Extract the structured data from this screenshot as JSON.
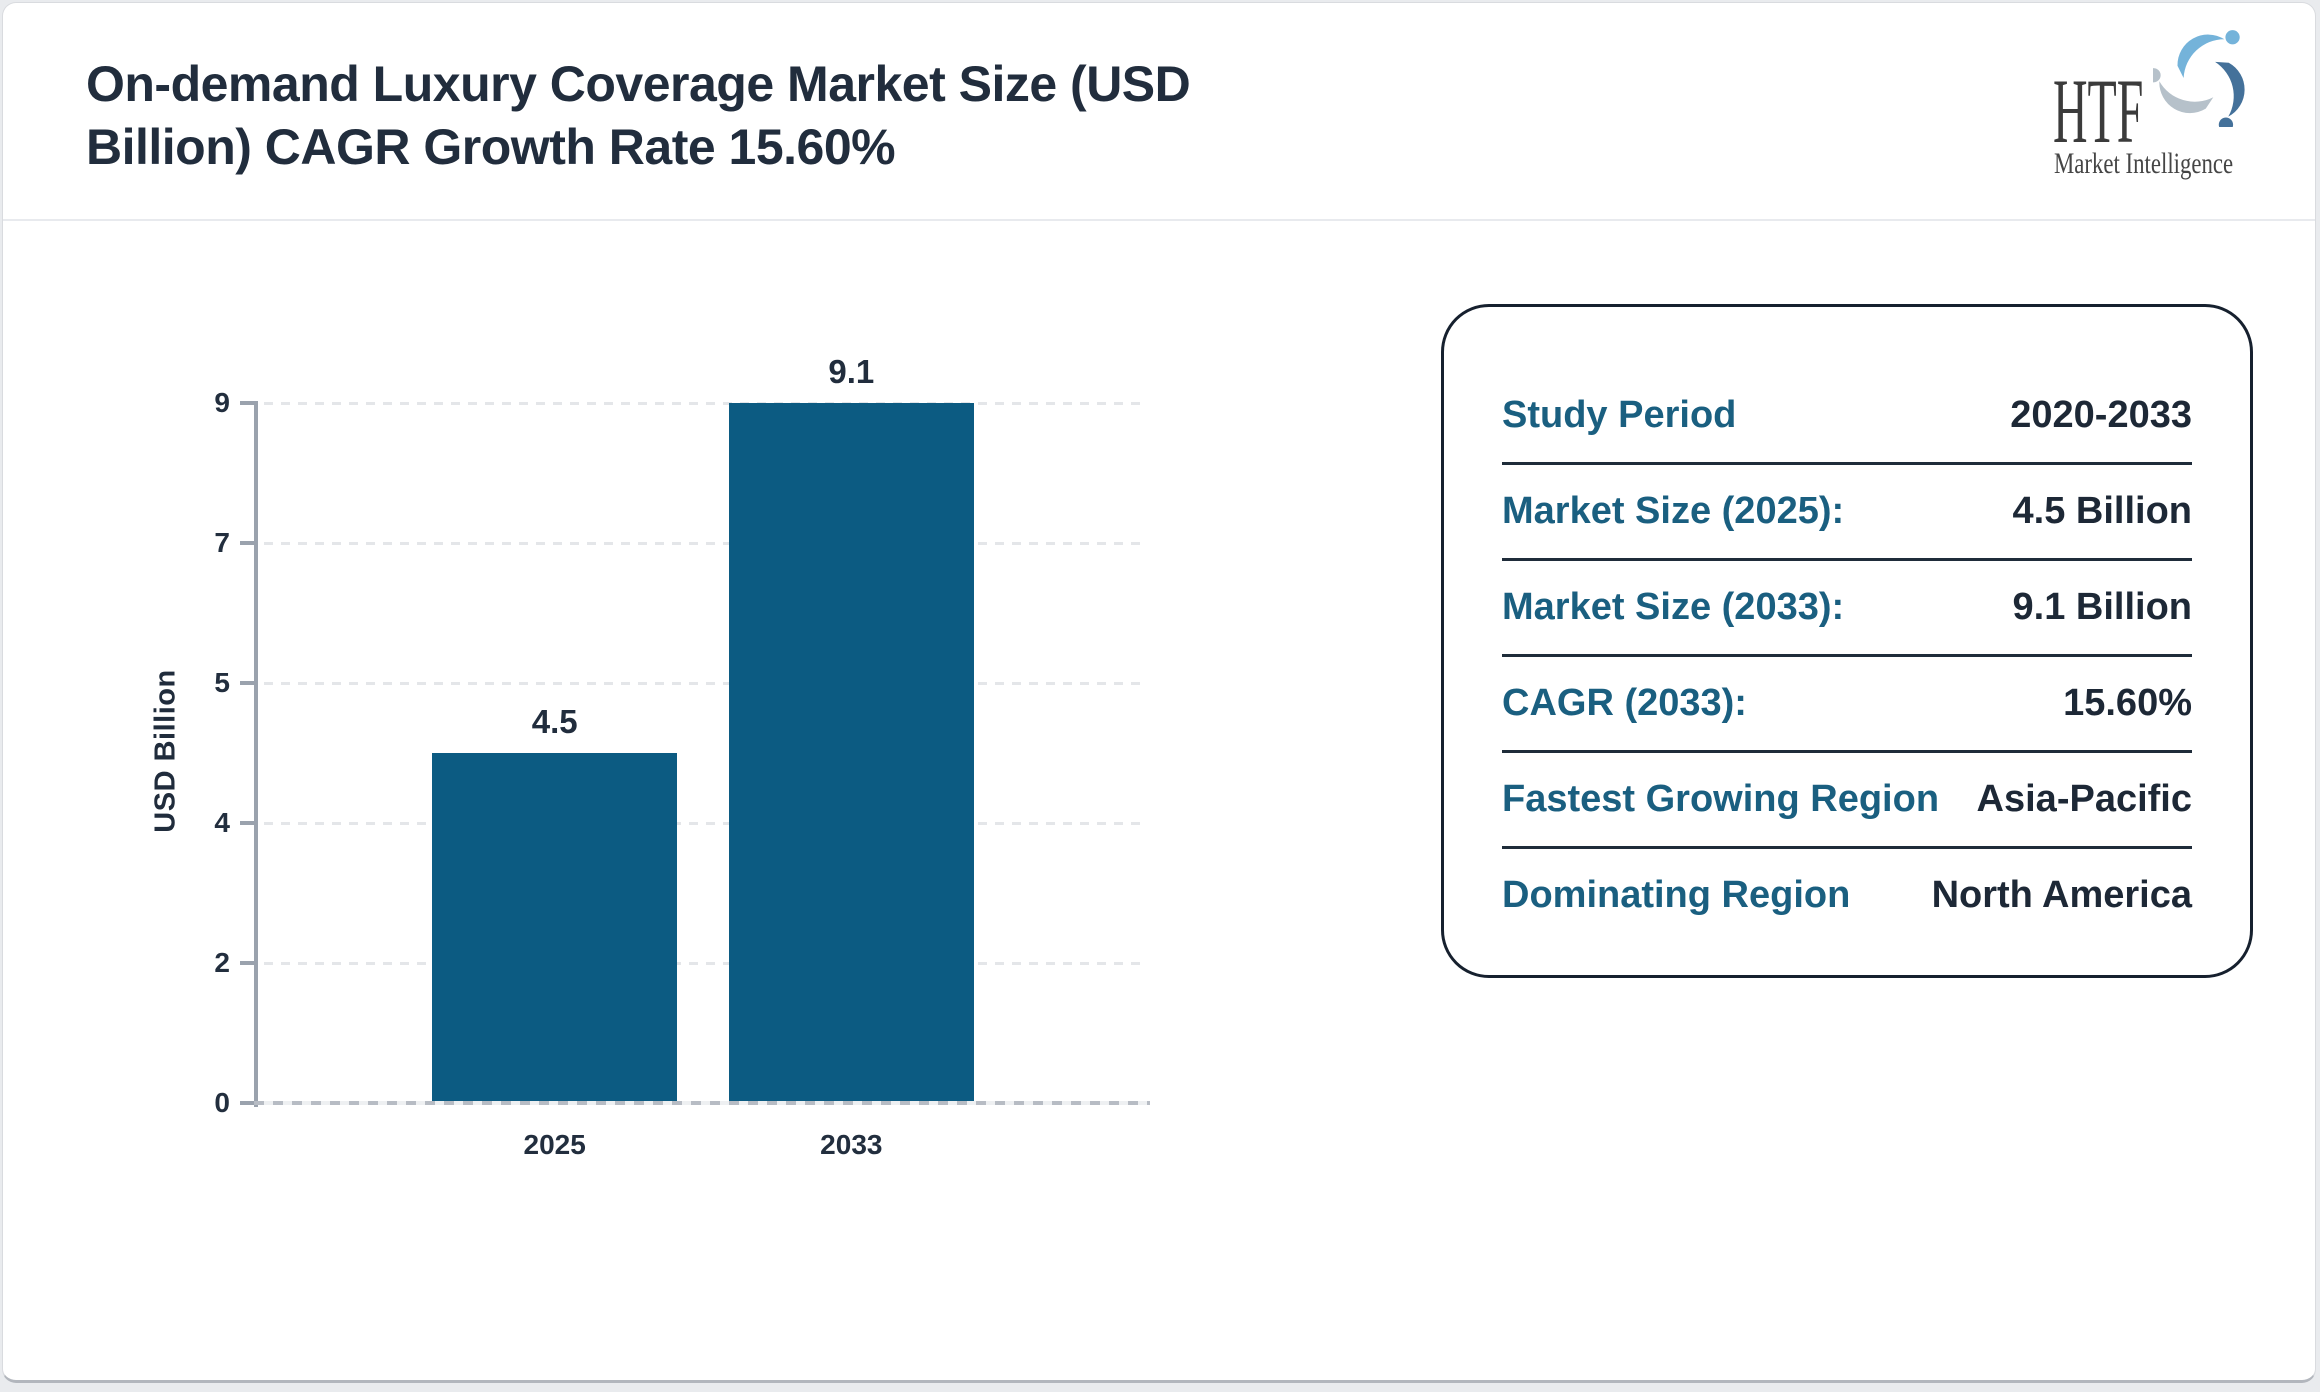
{
  "header": {
    "title": "On-demand Luxury Coverage Market Size (USD Billion) CAGR Growth Rate 15.60%"
  },
  "logo": {
    "wordmark": "HTF",
    "tagline": "Market Intelligence",
    "icon": "people-swirl-icon",
    "icon_colors": {
      "light_blue": "#74b3da",
      "steel_blue": "#44719a",
      "gray": "#b6c1ca"
    }
  },
  "chart_data": {
    "type": "bar",
    "title": "On-demand Luxury Coverage Market Size (USD Billion) CAGR Growth Rate 15.60%",
    "categories": [
      "2025",
      "2033"
    ],
    "values": [
      4.5,
      9.1
    ],
    "xlabel": "",
    "ylabel": "USD Billion",
    "ytick_labels": [
      "0",
      "2",
      "4",
      "5",
      "7",
      "9"
    ],
    "ylim": [
      0,
      9
    ],
    "grid": "horizontal-dashed",
    "legend": "none",
    "bar_color": "#0c5b82",
    "label_color": "#212d3d"
  },
  "info_card": {
    "rows": [
      {
        "label": "Study Period",
        "value": "2020-2033"
      },
      {
        "label": "Market Size (2025):",
        "value": "4.5 Billion"
      },
      {
        "label": "Market Size (2033):",
        "value": "9.1 Billion"
      },
      {
        "label": "CAGR (2033):",
        "value": "15.60%"
      },
      {
        "label": "Fastest Growing Region",
        "value": "Asia-Pacific"
      },
      {
        "label": "Dominating Region",
        "value": "North America"
      }
    ]
  },
  "colors": {
    "bar": "#0c5b82",
    "teal_label": "#1a5f80",
    "navy_text": "#212d3d",
    "axis_gray": "#9aa2ad",
    "gridline": "#e4e6e9",
    "card_border": "#16202e",
    "page_background": "#e9ebee"
  }
}
